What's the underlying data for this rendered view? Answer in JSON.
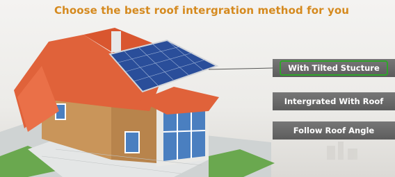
{
  "title": "Choose the best roof intergration method  for you",
  "options": [
    {
      "label": "With Tilted Stucture",
      "selected": true
    },
    {
      "label": "Intergrated With Roof",
      "selected": false
    },
    {
      "label": "Follow Roof Angle",
      "selected": false
    }
  ]
}
